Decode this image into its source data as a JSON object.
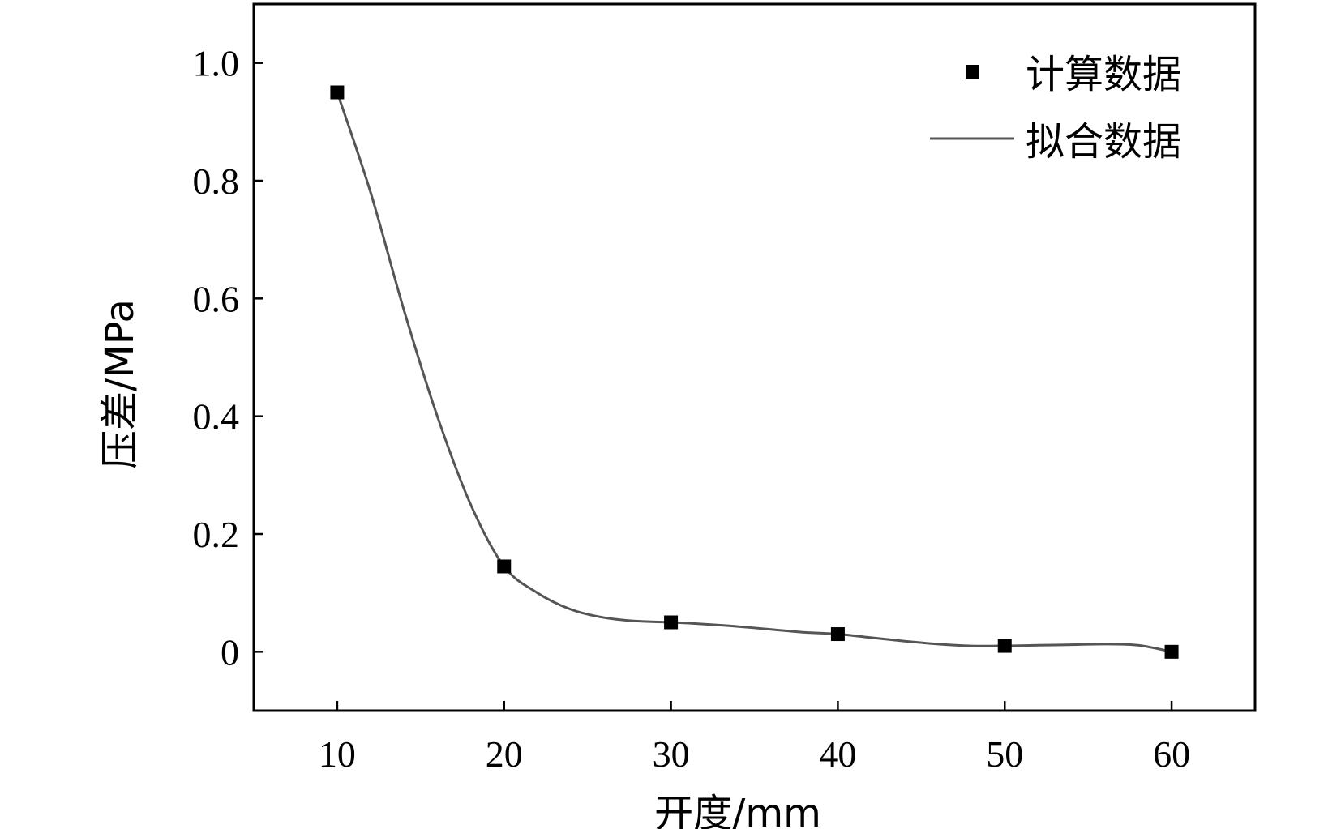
{
  "chart_data": {
    "type": "scatter",
    "title": "",
    "xlabel": "开度/mm",
    "ylabel": "压差/MPa",
    "xlim": [
      5,
      65
    ],
    "ylim": [
      -0.1,
      1.1
    ],
    "xticks": [
      10,
      20,
      30,
      40,
      50,
      60
    ],
    "xtick_labels": [
      "10",
      "20",
      "30",
      "40",
      "50",
      "60"
    ],
    "yticks": [
      0,
      0.2,
      0.4,
      0.6,
      0.8,
      1.0
    ],
    "ytick_labels": [
      "0",
      "0.2",
      "0.4",
      "0.6",
      "0.8",
      "1.0"
    ],
    "grid": false,
    "legend_position": "top-right",
    "series": [
      {
        "name": "计算数据",
        "kind": "markers",
        "marker": "square",
        "color": "#000000",
        "x": [
          10,
          20,
          30,
          40,
          50,
          60
        ],
        "y": [
          0.95,
          0.145,
          0.05,
          0.03,
          0.01,
          0.0
        ]
      },
      {
        "name": "拟合数据",
        "kind": "line",
        "color": "#555555",
        "x": [
          10,
          12,
          14,
          16,
          18,
          20,
          22,
          24,
          26,
          28,
          30,
          32,
          34,
          36,
          38,
          40,
          42,
          44,
          46,
          48,
          50,
          52,
          54,
          56,
          58,
          60
        ],
        "y": [
          0.95,
          0.78,
          0.58,
          0.4,
          0.25,
          0.145,
          0.1,
          0.072,
          0.058,
          0.052,
          0.05,
          0.047,
          0.043,
          0.038,
          0.033,
          0.03,
          0.024,
          0.018,
          0.013,
          0.01,
          0.01,
          0.011,
          0.012,
          0.013,
          0.011,
          0.0
        ]
      }
    ]
  }
}
